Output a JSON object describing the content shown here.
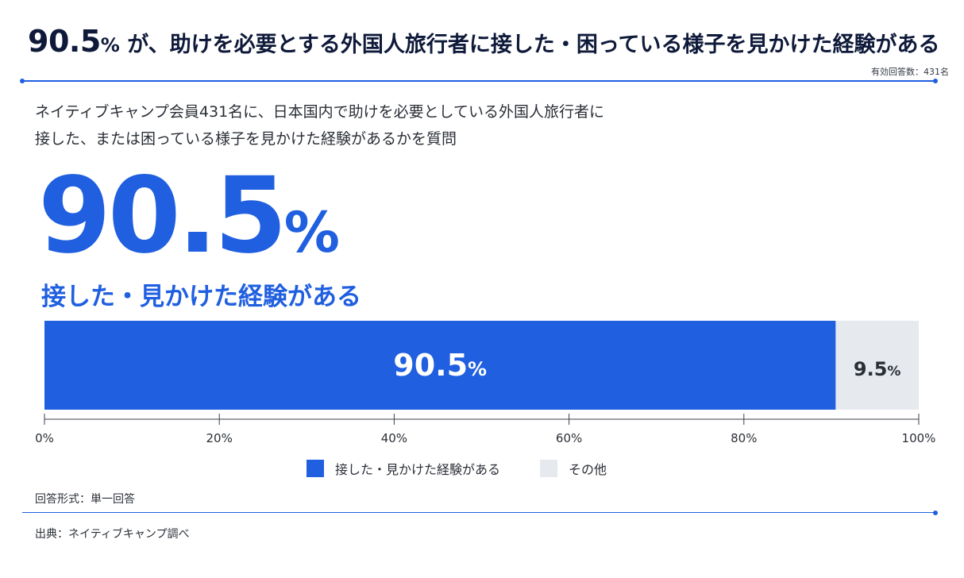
{
  "header": {
    "value": "90.5",
    "unit": "%",
    "text": " が、助けを必要とする外国人旅行者に接した・困っている様子を見かけた経験がある"
  },
  "respondents": "有効回答数：431名",
  "question": {
    "line1": "ネイティブキャンプ会員431名に、日本国内で助けを必要としている外国人旅行者に",
    "line2": "接した、または困っている様子を見かけた経験があるかを質問"
  },
  "highlight": {
    "value": "90.5",
    "unit": "%",
    "label": "接した・見かけた経験がある"
  },
  "footer": {
    "format": "回答形式：単一回答",
    "source": "出典：ネイティブキャンプ調べ"
  },
  "colors": {
    "primary": "#1f5fe0",
    "other": "#e6e9ee",
    "headline": "#0f1a3a"
  },
  "chart_data": {
    "type": "bar",
    "orientation": "horizontal-stacked",
    "categories": [
      ""
    ],
    "series": [
      {
        "name": "接した・見かけた経験がある",
        "values": [
          90.5
        ],
        "label": "90.5",
        "color": "#1f5fe0"
      },
      {
        "name": "その他",
        "values": [
          9.5
        ],
        "label": "9.5",
        "color": "#e6e9ee"
      }
    ],
    "unit": "%",
    "xlim": [
      0,
      100
    ],
    "xticks": [
      0,
      20,
      40,
      60,
      80,
      100
    ],
    "xtick_labels": [
      "0%",
      "20%",
      "40%",
      "60%",
      "80%",
      "100%"
    ],
    "legend_position": "bottom-center",
    "grid": false
  }
}
